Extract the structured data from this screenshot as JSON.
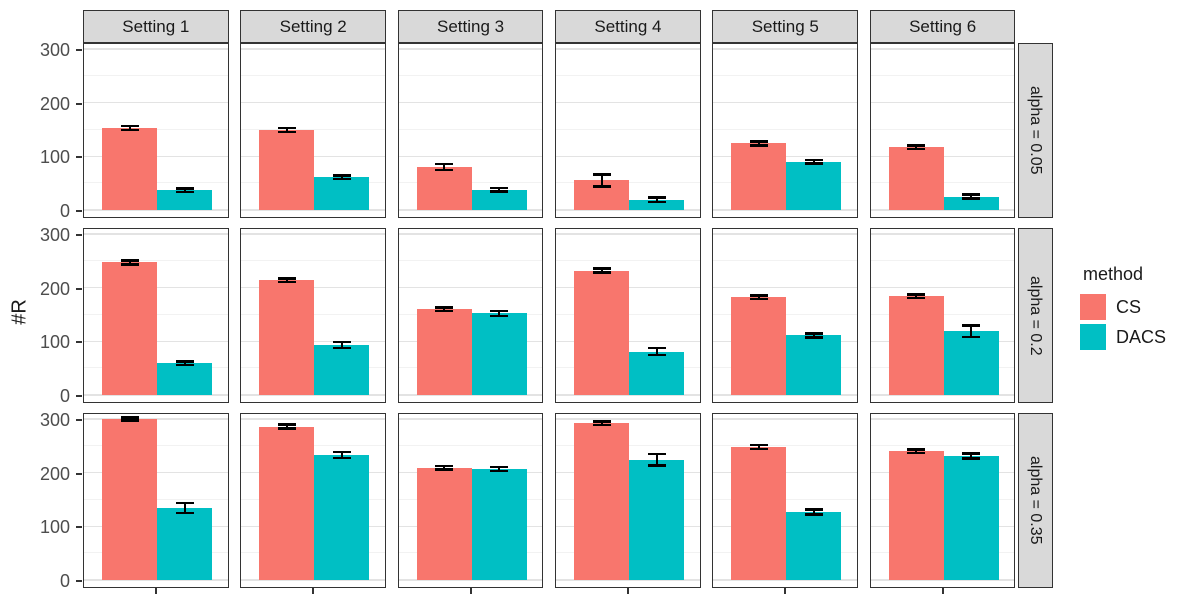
{
  "chart_data": {
    "type": "bar",
    "title": "",
    "ylabel": "#R",
    "xlabel": "",
    "y_ticks": [
      0,
      100,
      200,
      300
    ],
    "y_minor_ticks": [
      50,
      150,
      250
    ],
    "ylim": [
      0,
      313
    ],
    "grid": true,
    "error_bars": true,
    "facet_columns": [
      "Setting 1",
      "Setting 2",
      "Setting 3",
      "Setting 4",
      "Setting 5",
      "Setting 6"
    ],
    "facet_rows": [
      "alpha = 0.05",
      "alpha = 0.2",
      "alpha = 0.35"
    ],
    "legend": {
      "title": "method",
      "position": "right",
      "entries": [
        {
          "label": "CS",
          "color": "#F8766D"
        },
        {
          "label": "DACS",
          "color": "#00BFC4"
        }
      ]
    },
    "rows": [
      {
        "alpha": "alpha = 0.05",
        "panels": [
          {
            "setting": "Setting 1",
            "bars": [
              {
                "method": "CS",
                "value": 153,
                "error": 3
              },
              {
                "method": "DACS",
                "value": 37,
                "error": 3
              }
            ]
          },
          {
            "setting": "Setting 2",
            "bars": [
              {
                "method": "CS",
                "value": 149,
                "error": 3
              },
              {
                "method": "DACS",
                "value": 61,
                "error": 3
              }
            ]
          },
          {
            "setting": "Setting 3",
            "bars": [
              {
                "method": "CS",
                "value": 80,
                "error": 5
              },
              {
                "method": "DACS",
                "value": 38,
                "error": 3
              }
            ]
          },
          {
            "setting": "Setting 4",
            "bars": [
              {
                "method": "CS",
                "value": 55,
                "error": 11
              },
              {
                "method": "DACS",
                "value": 19,
                "error": 4
              }
            ]
          },
          {
            "setting": "Setting 5",
            "bars": [
              {
                "method": "CS",
                "value": 124,
                "error": 3
              },
              {
                "method": "DACS",
                "value": 90,
                "error": 3
              }
            ]
          },
          {
            "setting": "Setting 6",
            "bars": [
              {
                "method": "CS",
                "value": 117,
                "error": 3
              },
              {
                "method": "DACS",
                "value": 25,
                "error": 3
              }
            ]
          }
        ]
      },
      {
        "alpha": "alpha = 0.2",
        "panels": [
          {
            "setting": "Setting 1",
            "bars": [
              {
                "method": "CS",
                "value": 247,
                "error": 3
              },
              {
                "method": "DACS",
                "value": 59,
                "error": 3
              }
            ]
          },
          {
            "setting": "Setting 2",
            "bars": [
              {
                "method": "CS",
                "value": 214,
                "error": 3
              },
              {
                "method": "DACS",
                "value": 93,
                "error": 5
              }
            ]
          },
          {
            "setting": "Setting 3",
            "bars": [
              {
                "method": "CS",
                "value": 160,
                "error": 3
              },
              {
                "method": "DACS",
                "value": 152,
                "error": 4
              }
            ]
          },
          {
            "setting": "Setting 4",
            "bars": [
              {
                "method": "CS",
                "value": 232,
                "error": 3
              },
              {
                "method": "DACS",
                "value": 81,
                "error": 6
              }
            ]
          },
          {
            "setting": "Setting 5",
            "bars": [
              {
                "method": "CS",
                "value": 182,
                "error": 3
              },
              {
                "method": "DACS",
                "value": 111,
                "error": 3
              }
            ]
          },
          {
            "setting": "Setting 6",
            "bars": [
              {
                "method": "CS",
                "value": 184,
                "error": 3
              },
              {
                "method": "DACS",
                "value": 119,
                "error": 10
              }
            ]
          }
        ]
      },
      {
        "alpha": "alpha = 0.35",
        "panels": [
          {
            "setting": "Setting 1",
            "bars": [
              {
                "method": "CS",
                "value": 300,
                "error": 2
              },
              {
                "method": "DACS",
                "value": 134,
                "error": 9
              }
            ]
          },
          {
            "setting": "Setting 2",
            "bars": [
              {
                "method": "CS",
                "value": 286,
                "error": 3
              },
              {
                "method": "DACS",
                "value": 233,
                "error": 5
              }
            ]
          },
          {
            "setting": "Setting 3",
            "bars": [
              {
                "method": "CS",
                "value": 209,
                "error": 3
              },
              {
                "method": "DACS",
                "value": 207,
                "error": 3
              }
            ]
          },
          {
            "setting": "Setting 4",
            "bars": [
              {
                "method": "CS",
                "value": 292,
                "error": 3
              },
              {
                "method": "DACS",
                "value": 224,
                "error": 10
              }
            ]
          },
          {
            "setting": "Setting 5",
            "bars": [
              {
                "method": "CS",
                "value": 248,
                "error": 3
              },
              {
                "method": "DACS",
                "value": 127,
                "error": 4
              }
            ]
          },
          {
            "setting": "Setting 6",
            "bars": [
              {
                "method": "CS",
                "value": 240,
                "error": 3
              },
              {
                "method": "DACS",
                "value": 231,
                "error": 4
              }
            ]
          }
        ]
      }
    ]
  },
  "colors": {
    "cs": "#F8766D",
    "dacs": "#00BFC4",
    "strip_bg": "#D9D9D9",
    "panel_border": "#333333",
    "grid_major": "#E3E3E3",
    "grid_minor": "#F2F2F2",
    "tick_label": "#4D4D4D",
    "errorbar": "#000000"
  }
}
